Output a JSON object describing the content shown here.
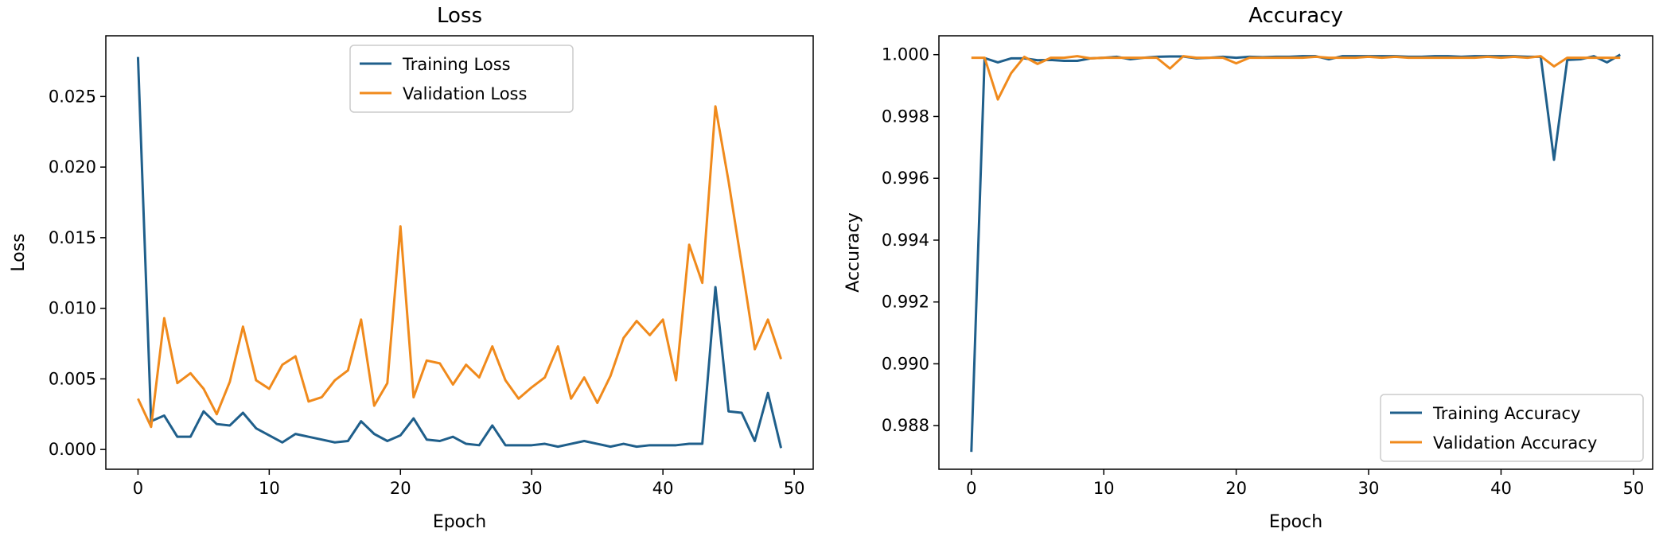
{
  "colors": {
    "training": "#1f5f8b",
    "validation": "#f08a1c",
    "axis": "#000000"
  },
  "chart_data": [
    {
      "type": "line",
      "title": "Loss",
      "xlabel": "Epoch",
      "ylabel": "Loss",
      "xlim": [
        -2.45,
        51.45
      ],
      "ylim": [
        -0.0014,
        0.0293
      ],
      "xticks": [
        0,
        10,
        20,
        30,
        40,
        50
      ],
      "yticks": [
        0.0,
        0.005,
        0.01,
        0.015,
        0.02,
        0.025
      ],
      "ytick_labels": [
        "0.000",
        "0.005",
        "0.010",
        "0.015",
        "0.020",
        "0.025"
      ],
      "xtick_labels": [
        "0",
        "10",
        "20",
        "30",
        "40",
        "50"
      ],
      "grid": false,
      "legend_position": "top-center",
      "x": [
        0,
        1,
        2,
        3,
        4,
        5,
        6,
        7,
        8,
        9,
        10,
        11,
        12,
        13,
        14,
        15,
        16,
        17,
        18,
        19,
        20,
        21,
        22,
        23,
        24,
        25,
        26,
        27,
        28,
        29,
        30,
        31,
        32,
        33,
        34,
        35,
        36,
        37,
        38,
        39,
        40,
        41,
        42,
        43,
        44,
        45,
        46,
        47,
        48,
        49
      ],
      "series": [
        {
          "name": "Training Loss",
          "color": "#1f5f8b",
          "values": [
            0.0278,
            0.002,
            0.0024,
            0.0009,
            0.0009,
            0.0027,
            0.0018,
            0.0017,
            0.0026,
            0.0015,
            0.001,
            0.0005,
            0.0011,
            0.0009,
            0.0007,
            0.0005,
            0.0006,
            0.002,
            0.0011,
            0.0006,
            0.001,
            0.0022,
            0.0007,
            0.0006,
            0.0009,
            0.0004,
            0.0003,
            0.0017,
            0.0003,
            0.0003,
            0.0003,
            0.0004,
            0.0002,
            0.0004,
            0.0006,
            0.0004,
            0.0002,
            0.0004,
            0.0002,
            0.0003,
            0.0003,
            0.0003,
            0.0004,
            0.0004,
            0.0115,
            0.0027,
            0.0026,
            0.0006,
            0.004,
            0.0001
          ]
        },
        {
          "name": "Validation Loss",
          "color": "#f08a1c",
          "values": [
            0.0036,
            0.0016,
            0.0093,
            0.0047,
            0.0054,
            0.0043,
            0.0025,
            0.0048,
            0.0087,
            0.0049,
            0.0043,
            0.006,
            0.0066,
            0.0034,
            0.0037,
            0.0049,
            0.0056,
            0.0092,
            0.0031,
            0.0047,
            0.0158,
            0.0037,
            0.0063,
            0.0061,
            0.0046,
            0.006,
            0.0051,
            0.0073,
            0.0049,
            0.0036,
            0.0044,
            0.0051,
            0.0073,
            0.0036,
            0.0051,
            0.0033,
            0.0052,
            0.0079,
            0.0091,
            0.0081,
            0.0092,
            0.0049,
            0.0145,
            0.0118,
            0.0243,
            0.019,
            0.0131,
            0.0071,
            0.0092,
            0.0064
          ]
        }
      ]
    },
    {
      "type": "line",
      "title": "Accuracy",
      "xlabel": "Epoch",
      "ylabel": "Accuracy",
      "xlim": [
        -2.45,
        51.45
      ],
      "ylim": [
        0.98659,
        1.00061
      ],
      "xticks": [
        0,
        10,
        20,
        30,
        40,
        50
      ],
      "yticks": [
        0.988,
        0.99,
        0.992,
        0.994,
        0.996,
        0.998,
        1.0
      ],
      "ytick_labels": [
        "0.988",
        "0.990",
        "0.992",
        "0.994",
        "0.996",
        "0.998",
        "1.000"
      ],
      "xtick_labels": [
        "0",
        "10",
        "20",
        "30",
        "40",
        "50"
      ],
      "grid": false,
      "legend_position": "bottom-right",
      "x": [
        0,
        1,
        2,
        3,
        4,
        5,
        6,
        7,
        8,
        9,
        10,
        11,
        12,
        13,
        14,
        15,
        16,
        17,
        18,
        19,
        20,
        21,
        22,
        23,
        24,
        25,
        26,
        27,
        28,
        29,
        30,
        31,
        32,
        33,
        34,
        35,
        36,
        37,
        38,
        39,
        40,
        41,
        42,
        43,
        44,
        45,
        46,
        47,
        48,
        49
      ],
      "series": [
        {
          "name": "Training Accuracy",
          "color": "#1f5f8b",
          "values": [
            0.98715,
            0.99989,
            0.99975,
            0.99988,
            0.99988,
            0.99982,
            0.99983,
            0.9998,
            0.9998,
            0.99988,
            0.9999,
            0.99993,
            0.99985,
            0.9999,
            0.99993,
            0.99994,
            0.99994,
            0.99988,
            0.9999,
            0.99993,
            0.9999,
            0.99993,
            0.99992,
            0.99993,
            0.99993,
            0.99995,
            0.99995,
            0.99985,
            0.99995,
            0.99995,
            0.99995,
            0.99995,
            0.99995,
            0.99993,
            0.99993,
            0.99995,
            0.99995,
            0.99993,
            0.99995,
            0.99995,
            0.99995,
            0.99995,
            0.99993,
            0.99993,
            0.9966,
            0.99983,
            0.99985,
            0.99995,
            0.99975,
            1.0
          ]
        },
        {
          "name": "Validation Accuracy",
          "color": "#f08a1c",
          "values": [
            0.9999,
            0.9999,
            0.99855,
            0.9994,
            0.99993,
            0.9997,
            0.9999,
            0.9999,
            0.99995,
            0.99988,
            0.9999,
            0.9999,
            0.9999,
            0.9999,
            0.9999,
            0.99955,
            0.99995,
            0.9999,
            0.9999,
            0.9999,
            0.99972,
            0.9999,
            0.9999,
            0.9999,
            0.9999,
            0.9999,
            0.99993,
            0.9999,
            0.9999,
            0.9999,
            0.99993,
            0.9999,
            0.99993,
            0.9999,
            0.9999,
            0.9999,
            0.9999,
            0.9999,
            0.9999,
            0.99993,
            0.9999,
            0.99993,
            0.9999,
            0.99995,
            0.99962,
            0.9999,
            0.9999,
            0.9999,
            0.9999,
            0.9999
          ]
        }
      ]
    }
  ]
}
